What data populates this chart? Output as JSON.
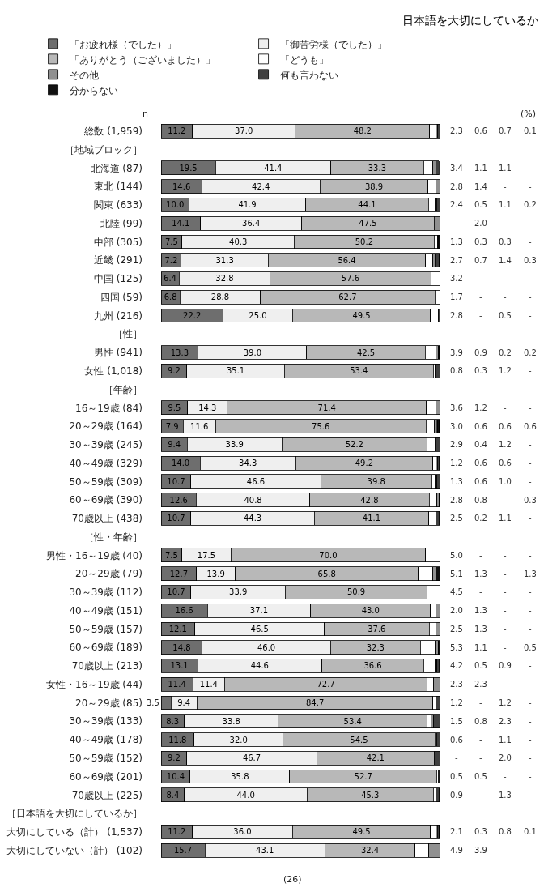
{
  "chart_data": {
    "type": "bar",
    "orientation": "horizontal",
    "stacked": true,
    "title": "日本語を大切にしているか",
    "categories": [
      "総数 (1,959)",
      "［地域ブロック］",
      "北海道 (87)",
      "東北 (144)",
      "関東 (633)",
      "北陸 (99)",
      "中部 (305)",
      "近畿 (291)",
      "中国 (125)",
      "四国 (59)",
      "九州 (216)",
      "［性］",
      "男性 (941)",
      "女性 (1,018)",
      "［年齢］",
      "16～19歳 (84)",
      "20～29歳 (164)",
      "30～39歳 (245)",
      "40～49歳 (329)",
      "50～59歳 (309)",
      "60～69歳 (390)",
      "70歳以上 (438)",
      "［性・年齢］",
      "男性・16～19歳 (40)",
      "20～29歳 (79)",
      "30～39歳 (112)",
      "40～49歳 (151)",
      "50～59歳 (157)",
      "60～69歳 (189)",
      "70歳以上 (213)",
      "女性・16～19歳 (44)",
      "20～29歳 (85)",
      "30～39歳 (133)",
      "40～49歳 (178)",
      "50～59歳 (152)",
      "60～69歳 (201)",
      "70歳以上 (225)",
      "［日本語を大切にしているか］",
      "大切にしている（計） (1,537)",
      "大切にしていない（計） (102)"
    ],
    "series": [
      {
        "name": "「お疲れ様（でした）」",
        "color": "#6e6e6e",
        "values": [
          11.2,
          null,
          19.5,
          14.6,
          10.0,
          14.1,
          7.5,
          7.2,
          6.4,
          6.8,
          22.2,
          null,
          13.3,
          9.2,
          null,
          9.5,
          7.9,
          9.4,
          14.0,
          10.7,
          12.6,
          10.7,
          null,
          7.5,
          12.7,
          10.7,
          16.6,
          12.1,
          14.8,
          13.1,
          11.4,
          3.5,
          8.3,
          11.8,
          9.2,
          10.4,
          8.4,
          null,
          11.2,
          15.7
        ],
        "value_labels": [
          "11.2",
          null,
          "19.5",
          "14.6",
          "10.0",
          "14.1",
          "7.5",
          "7.2",
          "6.4",
          "6.8",
          "22.2",
          null,
          "13.3",
          "9.2",
          null,
          "9.5",
          "7.9",
          "9.4",
          "14.0",
          "10.7",
          "12.6",
          "10.7",
          null,
          "7.5",
          "12.7",
          "10.7",
          "16.6",
          "12.1",
          "14.8",
          "13.1",
          "11.4",
          "3.5",
          "8.3",
          "11.8",
          "9.2",
          "10.4",
          "8.4",
          null,
          "11.2",
          "15.7"
        ]
      },
      {
        "name": "「御苦労様（でした）」",
        "color": "#efefef",
        "values": [
          37.0,
          null,
          41.4,
          42.4,
          41.9,
          36.4,
          40.3,
          31.3,
          32.8,
          28.8,
          25.0,
          null,
          39.0,
          35.1,
          null,
          14.3,
          11.6,
          33.9,
          34.3,
          46.6,
          40.8,
          44.3,
          null,
          17.5,
          13.9,
          33.9,
          37.1,
          46.5,
          46.0,
          44.6,
          11.4,
          9.4,
          33.8,
          32.0,
          46.7,
          35.8,
          44.0,
          null,
          36.0,
          43.1
        ],
        "value_labels": [
          "37.0",
          null,
          "41.4",
          "42.4",
          "41.9",
          "36.4",
          "40.3",
          "31.3",
          "32.8",
          "28.8",
          "25.0",
          null,
          "39.0",
          "35.1",
          null,
          "14.3",
          "11.6",
          "33.9",
          "34.3",
          "46.6",
          "40.8",
          "44.3",
          null,
          "17.5",
          "13.9",
          "33.9",
          "37.1",
          "46.5",
          "46.0",
          "44.6",
          "11.4",
          "9.4",
          "33.8",
          "32.0",
          "46.7",
          "35.8",
          "44.0",
          null,
          "36.0",
          "43.1"
        ]
      },
      {
        "name": "「ありがとう（ございました）」",
        "color": "#b8b8b8",
        "values": [
          48.2,
          null,
          33.3,
          38.9,
          44.1,
          47.5,
          50.2,
          56.4,
          57.6,
          62.7,
          49.5,
          null,
          42.5,
          53.4,
          null,
          71.4,
          75.6,
          52.2,
          49.2,
          39.8,
          42.8,
          41.1,
          null,
          70.0,
          65.8,
          50.9,
          43.0,
          37.6,
          32.3,
          36.6,
          72.7,
          84.7,
          53.4,
          54.5,
          42.1,
          52.7,
          45.3,
          null,
          49.5,
          32.4
        ],
        "value_labels": [
          "48.2",
          null,
          "33.3",
          "38.9",
          "44.1",
          "47.5",
          "50.2",
          "56.4",
          "57.6",
          "62.7",
          "49.5",
          null,
          "42.5",
          "53.4",
          null,
          "71.4",
          "75.6",
          "52.2",
          "49.2",
          "39.8",
          "42.8",
          "41.1",
          null,
          "70.0",
          "65.8",
          "50.9",
          "43.0",
          "37.6",
          "32.3",
          "36.6",
          "72.7",
          "84.7",
          "53.4",
          "54.5",
          "42.1",
          "52.7",
          "45.3",
          null,
          "49.5",
          "32.4"
        ]
      },
      {
        "name": "「どうも」",
        "color": "#ffffff",
        "values": [
          2.3,
          null,
          3.4,
          2.8,
          2.4,
          null,
          1.3,
          2.7,
          3.2,
          1.7,
          2.8,
          null,
          3.9,
          0.8,
          null,
          3.6,
          3.0,
          2.9,
          1.2,
          1.3,
          2.8,
          2.5,
          null,
          5.0,
          5.1,
          4.5,
          2.0,
          2.5,
          5.3,
          4.2,
          2.3,
          1.2,
          1.5,
          0.6,
          null,
          0.5,
          0.9,
          null,
          2.1,
          4.9
        ],
        "value_labels": [
          "2.3",
          null,
          "3.4",
          "2.8",
          "2.4",
          "-",
          "1.3",
          "2.7",
          "3.2",
          "1.7",
          "2.8",
          null,
          "3.9",
          "0.8",
          null,
          "3.6",
          "3.0",
          "2.9",
          "1.2",
          "1.3",
          "2.8",
          "2.5",
          null,
          "5.0",
          "5.1",
          "4.5",
          "2.0",
          "2.5",
          "5.3",
          "4.2",
          "2.3",
          "1.2",
          "1.5",
          "0.6",
          "-",
          "0.5",
          "0.9",
          null,
          "2.1",
          "4.9"
        ]
      },
      {
        "name": "その他",
        "color": "#909090",
        "values": [
          0.6,
          null,
          1.1,
          1.4,
          0.5,
          2.0,
          0.3,
          0.7,
          null,
          null,
          null,
          null,
          0.9,
          0.3,
          null,
          1.2,
          0.6,
          0.4,
          0.6,
          0.6,
          0.8,
          0.2,
          null,
          null,
          1.3,
          null,
          1.3,
          1.3,
          1.1,
          0.5,
          2.3,
          null,
          0.8,
          null,
          null,
          0.5,
          null,
          null,
          0.3,
          3.9
        ],
        "value_labels": [
          "0.6",
          null,
          "1.1",
          "1.4",
          "0.5",
          "2.0",
          "0.3",
          "0.7",
          "-",
          "-",
          "-",
          null,
          "0.9",
          "0.3",
          null,
          "1.2",
          "0.6",
          "0.4",
          "0.6",
          "0.6",
          "0.8",
          "0.2",
          null,
          "-",
          "1.3",
          "-",
          "1.3",
          "1.3",
          "1.1",
          "0.5",
          "2.3",
          "-",
          "0.8",
          "-",
          "-",
          "0.5",
          "-",
          null,
          "0.3",
          "3.9"
        ]
      },
      {
        "name": "何も言わない",
        "color": "#404040",
        "values": [
          0.7,
          null,
          1.1,
          null,
          1.1,
          null,
          0.3,
          1.4,
          null,
          null,
          0.5,
          null,
          0.2,
          1.2,
          null,
          null,
          0.6,
          1.2,
          0.6,
          1.0,
          null,
          1.1,
          null,
          null,
          null,
          null,
          null,
          null,
          null,
          0.9,
          null,
          1.2,
          2.3,
          1.1,
          2.0,
          null,
          1.3,
          null,
          0.8,
          null
        ],
        "value_labels": [
          "0.7",
          null,
          "1.1",
          "-",
          "1.1",
          "-",
          "0.3",
          "1.4",
          "-",
          "-",
          "0.5",
          null,
          "0.2",
          "1.2",
          null,
          "-",
          "0.6",
          "1.2",
          "0.6",
          "1.0",
          "-",
          "1.1",
          null,
          "-",
          "-",
          "-",
          "-",
          "-",
          "-",
          "0.9",
          "-",
          "1.2",
          "2.3",
          "1.1",
          "2.0",
          "-",
          "1.3",
          null,
          "0.8",
          "-"
        ]
      },
      {
        "name": "分からない",
        "color": "#111111",
        "values": [
          0.1,
          null,
          null,
          null,
          0.2,
          null,
          null,
          0.3,
          null,
          null,
          null,
          null,
          0.2,
          null,
          null,
          null,
          0.6,
          null,
          null,
          null,
          0.3,
          null,
          null,
          null,
          1.3,
          null,
          null,
          null,
          0.5,
          null,
          null,
          null,
          null,
          null,
          null,
          null,
          null,
          null,
          0.1,
          null
        ],
        "value_labels": [
          "0.1",
          null,
          "-",
          "-",
          "0.2",
          "-",
          "-",
          "0.3",
          "-",
          "-",
          "-",
          null,
          "0.2",
          "-",
          null,
          "-",
          "0.6",
          "-",
          "-",
          "-",
          "0.3",
          "-",
          null,
          "-",
          "1.3",
          "-",
          "-",
          "-",
          "0.5",
          "-",
          "-",
          "-",
          "-",
          "-",
          "-",
          "-",
          "-",
          null,
          "0.1",
          "-"
        ]
      }
    ],
    "xlim": [
      0,
      100
    ],
    "tick_labels": "y",
    "legend": "top",
    "annotations": [
      "n",
      "(%)",
      "(26)"
    ]
  }
}
